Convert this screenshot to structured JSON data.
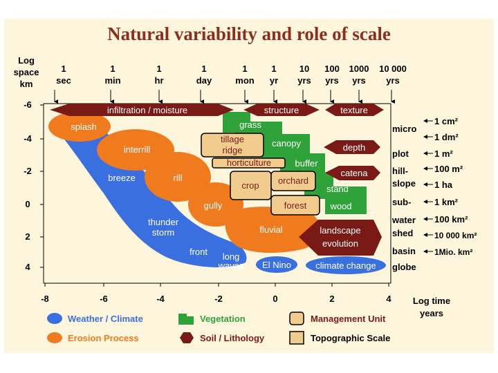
{
  "title": "Natural variability and role of scale",
  "axes": {
    "y_title_lines": [
      "Log",
      "space",
      "km"
    ],
    "x_title_lines": [
      "Log time",
      "years"
    ],
    "y_ticks": [
      "-6",
      "-4",
      "-2",
      "0",
      "2",
      "4"
    ],
    "x_ticks": [
      "-8",
      "-6",
      "-4",
      "-2",
      "0",
      "2",
      "4"
    ],
    "time_units": [
      {
        "top": "1",
        "bottom": "sec"
      },
      {
        "top": "1",
        "bottom": "min"
      },
      {
        "top": "1",
        "bottom": "hr"
      },
      {
        "top": "1",
        "bottom": "day"
      },
      {
        "top": "1",
        "bottom": "mon"
      },
      {
        "top": "1",
        "bottom": "yr"
      },
      {
        "top": "10",
        "bottom": "yrs"
      },
      {
        "top": "100",
        "bottom": "yrs"
      },
      {
        "top": "1000",
        "bottom": "yrs"
      },
      {
        "top": "10 000",
        "bottom": "yrs"
      }
    ]
  },
  "soil_bands": {
    "infiltration": "infiltration / moisture",
    "structure": "structure",
    "texture": "texture",
    "depth": "depth",
    "catena": "catena",
    "landscape_line1": "landscape",
    "landscape_line2": "evolution"
  },
  "erosion": {
    "splash": "splash",
    "interrill": "interrill",
    "rill": "rill",
    "gully": "gully",
    "fluvial": "fluvial"
  },
  "weather": {
    "breeze": "breeze",
    "thunder1": "thunder",
    "thunder2": "storm",
    "front": "front",
    "long1": "long",
    "long2": "waves",
    "elnino": "El Nino",
    "climate_change": "climate change"
  },
  "vegetation": {
    "grass": "grass",
    "canopy": "canopy",
    "buffer": "buffer",
    "stand": "stand",
    "wood": "wood"
  },
  "management": {
    "tillage_ridge_line1": "tillage",
    "tillage_ridge_line2": "ridge",
    "horticulture": "horticulture",
    "crop": "crop",
    "orchard": "orchard",
    "forest": "forest"
  },
  "topographic_scales": [
    {
      "label": "micro",
      "area": "1 cm²"
    },
    {
      "label": "",
      "area": "1 dm²"
    },
    {
      "label": "plot",
      "area": "1 m²"
    },
    {
      "label": "hill-",
      "area": "100 m²"
    },
    {
      "label": "slope",
      "area": "1 ha"
    },
    {
      "label": "sub-",
      "area": "1 km²"
    },
    {
      "label": "water",
      "area": "100 km²"
    },
    {
      "label": "shed",
      "area": "10 000 km²"
    },
    {
      "label": "basin",
      "area": "1Mio. km²"
    },
    {
      "label": "globe",
      "area": ""
    }
  ],
  "legend": {
    "weather": "Weather / Climate",
    "erosion": "Erosion Process",
    "vegetation": "Vegetation",
    "soil": "Soil / Lithology",
    "management": "Management Unit",
    "topographic": "Topographic Scale"
  },
  "colors": {
    "weather": "#3a6fe0",
    "erosion": "#f07a1e",
    "vegetation": "#2fa23a",
    "soil": "#7a1a16",
    "management_fill": "#f2cc8f",
    "title": "#8b2e1f",
    "panel": "#fdf6dc"
  }
}
